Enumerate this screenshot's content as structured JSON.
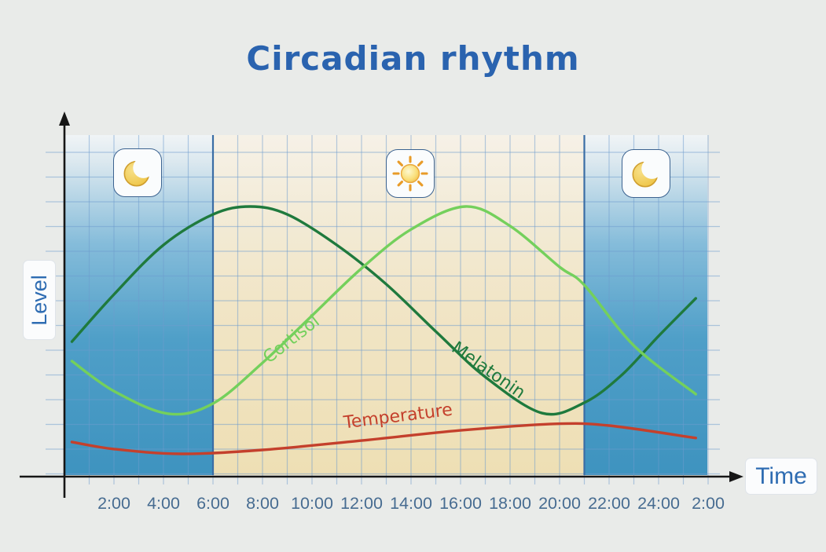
{
  "title": {
    "text": "Circadian rhythm",
    "color": "#2a63af"
  },
  "axes": {
    "x_label": "Time",
    "y_label": "Level",
    "tick_color": "#476c91",
    "axis_color": "#161616"
  },
  "icons": {
    "left": "moon",
    "middle": "sun",
    "right": "moon"
  },
  "chart_data": {
    "type": "line",
    "title": "Circadian rhythm",
    "xlabel": "Time",
    "ylabel": "Level",
    "x_hours_range": [
      0,
      26
    ],
    "level_range": [
      0,
      100
    ],
    "grid": true,
    "legend_position": "inline-curve-labels",
    "x_ticks": [
      {
        "t": 2,
        "label": "2:00"
      },
      {
        "t": 4,
        "label": "4:00"
      },
      {
        "t": 6,
        "label": "6:00"
      },
      {
        "t": 8,
        "label": "8:00"
      },
      {
        "t": 10,
        "label": "10:00"
      },
      {
        "t": 12,
        "label": "12:00"
      },
      {
        "t": 14,
        "label": "14:00"
      },
      {
        "t": 16,
        "label": "16:00"
      },
      {
        "t": 18,
        "label": "18:00"
      },
      {
        "t": 20,
        "label": "20:00"
      },
      {
        "t": 22,
        "label": "22:00"
      },
      {
        "t": 24,
        "label": "24:00"
      },
      {
        "t": 26,
        "label": "2:00"
      }
    ],
    "bands": [
      {
        "kind": "night",
        "from": 0,
        "to": 6,
        "icon": "moon"
      },
      {
        "kind": "day",
        "from": 6,
        "to": 21,
        "icon": "sun"
      },
      {
        "kind": "night",
        "from": 21,
        "to": 26,
        "icon": "moon"
      }
    ],
    "boundaries": [
      6,
      21
    ],
    "series": [
      {
        "name": "Melatonin",
        "color": "#1f7a3d",
        "label_angle": 35,
        "label_t": 17.0,
        "label_level": 35.5,
        "points": [
          [
            0.3,
            47.2
          ],
          [
            2,
            63.9
          ],
          [
            4,
            81.4
          ],
          [
            6,
            92.2
          ],
          [
            7.5,
            95
          ],
          [
            9,
            92.2
          ],
          [
            11,
            81.4
          ],
          [
            13,
            67.5
          ],
          [
            15,
            50.8
          ],
          [
            17,
            34.7
          ],
          [
            19.3,
            21.9
          ],
          [
            21,
            25.6
          ],
          [
            22.5,
            35.3
          ],
          [
            24,
            49.2
          ],
          [
            25.5,
            62.5
          ]
        ]
      },
      {
        "name": "Cortisol",
        "color": "#74d05c",
        "label_angle": -38,
        "label_t": 9.3,
        "label_level": 46.5,
        "points": [
          [
            0.3,
            40.3
          ],
          [
            2,
            29.7
          ],
          [
            4.2,
            21.7
          ],
          [
            6,
            25.3
          ],
          [
            8,
            39.7
          ],
          [
            10,
            56.4
          ],
          [
            12,
            73.1
          ],
          [
            14,
            86.9
          ],
          [
            16.2,
            95
          ],
          [
            18,
            88.1
          ],
          [
            20,
            73.6
          ],
          [
            21,
            67.2
          ],
          [
            23,
            45.8
          ],
          [
            25.5,
            28.6
          ]
        ]
      },
      {
        "name": "Temperature",
        "color": "#c4402c",
        "label_angle": -7,
        "label_t": 13.5,
        "label_level": 18.9,
        "points": [
          [
            0.3,
            11.7
          ],
          [
            2,
            9.2
          ],
          [
            4.7,
            7.5
          ],
          [
            8,
            8.9
          ],
          [
            12,
            12.2
          ],
          [
            16,
            15.8
          ],
          [
            19.8,
            18.1
          ],
          [
            22,
            17.5
          ],
          [
            25.5,
            13.1
          ]
        ]
      }
    ],
    "colors": {
      "night_gradient": [
        "#f0f4f6",
        "#dbe8ef",
        "#85bcda",
        "#4f9fc8",
        "#3e93bf"
      ],
      "day_gradient": [
        "#f6f1e7",
        "#f3ecd9",
        "#f1e5c6",
        "#eedfb4"
      ],
      "boundary_line": "#3a6da5",
      "grid_line": "rgba(110,155,205,0.5)"
    }
  }
}
